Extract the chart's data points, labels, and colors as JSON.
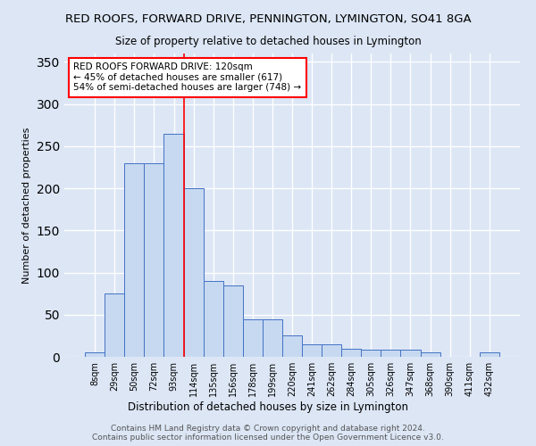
{
  "title": "RED ROOFS, FORWARD DRIVE, PENNINGTON, LYMINGTON, SO41 8GA",
  "subtitle": "Size of property relative to detached houses in Lymington",
  "xlabel": "Distribution of detached houses by size in Lymington",
  "ylabel": "Number of detached properties",
  "categories": [
    "8sqm",
    "29sqm",
    "50sqm",
    "72sqm",
    "93sqm",
    "114sqm",
    "135sqm",
    "156sqm",
    "178sqm",
    "199sqm",
    "220sqm",
    "241sqm",
    "262sqm",
    "284sqm",
    "305sqm",
    "326sqm",
    "347sqm",
    "368sqm",
    "390sqm",
    "411sqm",
    "432sqm"
  ],
  "values": [
    5,
    75,
    230,
    230,
    265,
    200,
    90,
    85,
    45,
    45,
    25,
    15,
    15,
    10,
    8,
    8,
    8,
    5,
    0,
    0,
    5
  ],
  "bar_color": "#c6d9f1",
  "bar_edge_color": "#4472c4",
  "annotation_line1": "RED ROOFS FORWARD DRIVE: 120sqm",
  "annotation_line2": "← 45% of detached houses are smaller (617)",
  "annotation_line3": "54% of semi-detached houses are larger (748) →",
  "annotation_box_color": "white",
  "annotation_box_edge": "red",
  "property_line_x": 5.0,
  "property_line_color": "red",
  "ylim": [
    0,
    360
  ],
  "yticks": [
    0,
    50,
    100,
    150,
    200,
    250,
    300,
    350
  ],
  "footer": "Contains HM Land Registry data © Crown copyright and database right 2024.\nContains public sector information licensed under the Open Government Licence v3.0.",
  "background_color": "#dce6f5",
  "grid_color": "white",
  "title_fontsize": 9.5,
  "subtitle_fontsize": 8.5
}
